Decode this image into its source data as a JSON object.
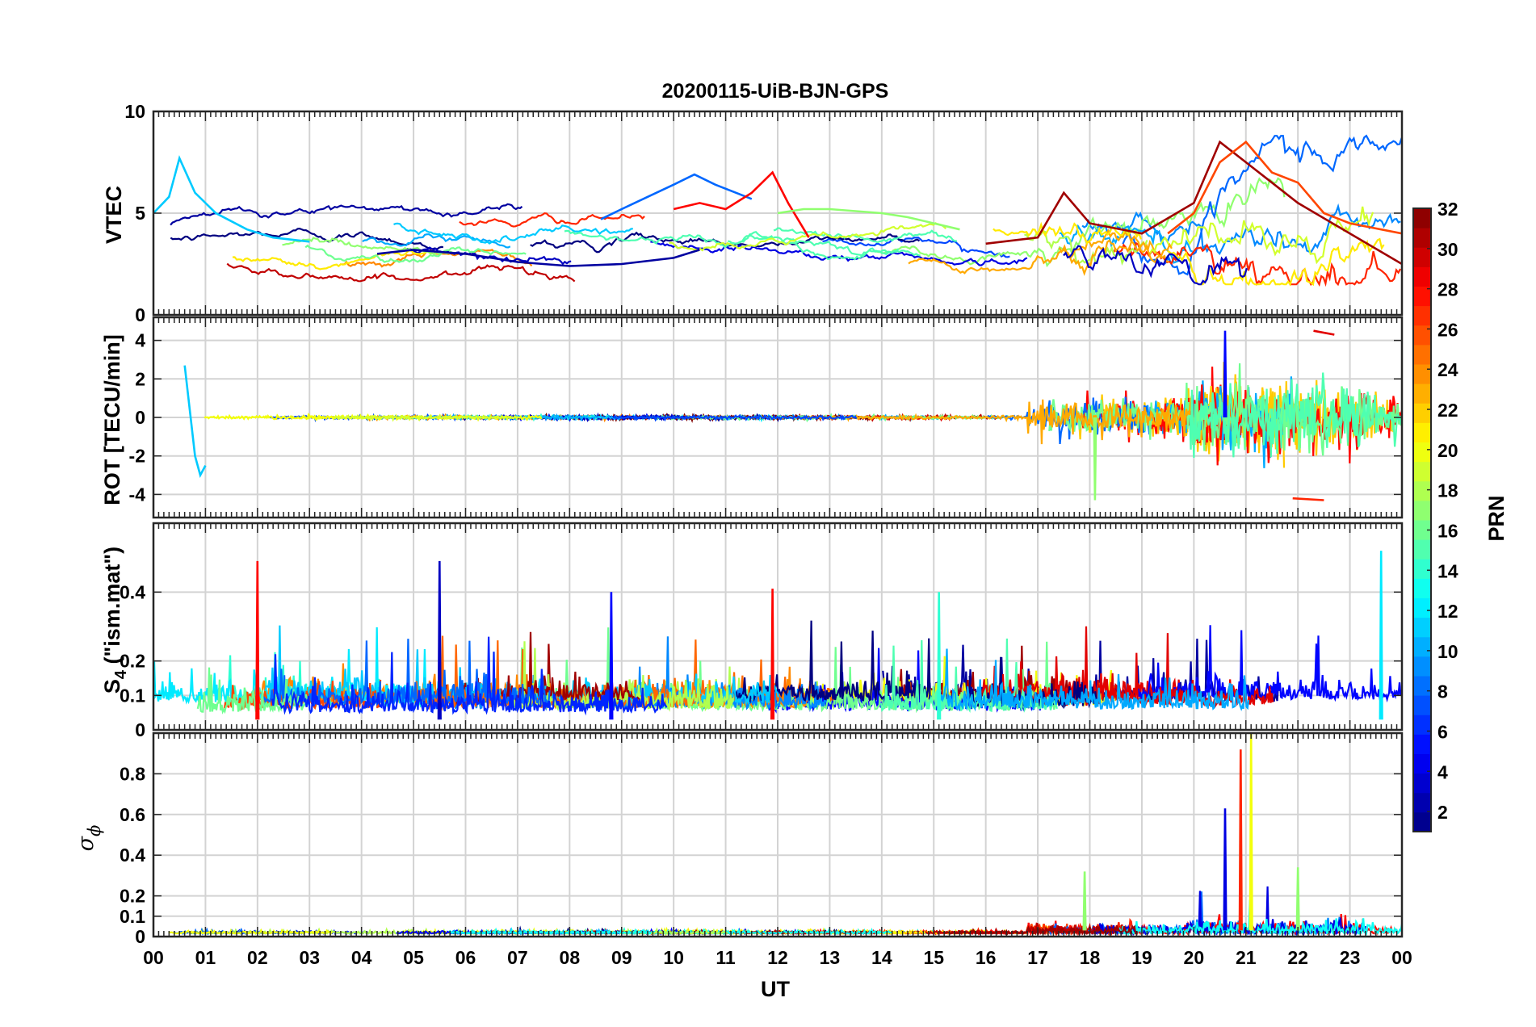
{
  "title": "20200115-UiB-BJN-GPS",
  "xlabel": "UT",
  "colorbar": {
    "label": "PRN",
    "range": [
      1,
      32
    ],
    "ticks": [
      "2",
      "4",
      "6",
      "8",
      "10",
      "12",
      "14",
      "16",
      "18",
      "20",
      "22",
      "24",
      "26",
      "28",
      "30",
      "32"
    ],
    "colormap": "jet"
  },
  "chart_data": [
    {
      "type": "line",
      "panel": "VTEC",
      "ylabel": "VTEC",
      "ylim": [
        0,
        10
      ],
      "yticks": [
        "0",
        "5",
        "10"
      ],
      "xlim": [
        0,
        24
      ],
      "xticks": [
        "00",
        "01",
        "02",
        "03",
        "04",
        "05",
        "06",
        "07",
        "08",
        "09",
        "10",
        "11",
        "12",
        "13",
        "14",
        "15",
        "16",
        "17",
        "18",
        "19",
        "20",
        "21",
        "22",
        "23",
        "00"
      ],
      "grid": true,
      "series": [
        {
          "prn": 11,
          "x": [
            0,
            0.3,
            0.5,
            0.8,
            1.2,
            1.8,
            2.3,
            3.0
          ],
          "values": [
            5.0,
            5.8,
            7.7,
            6.0,
            5.0,
            4.2,
            3.8,
            3.6
          ]
        },
        {
          "prn": 2,
          "x": [
            4.3,
            5.0,
            6.0,
            7.0,
            8.0,
            9.0,
            10.0,
            10.5
          ],
          "values": [
            3.0,
            3.2,
            3.0,
            2.6,
            2.4,
            2.5,
            2.8,
            3.2
          ]
        },
        {
          "prn": 8,
          "x": [
            8.6,
            9.0,
            9.5,
            10.0,
            10.4,
            10.8,
            11.2,
            11.5
          ],
          "values": [
            4.7,
            5.2,
            5.8,
            6.4,
            6.9,
            6.4,
            6.0,
            5.7
          ]
        },
        {
          "prn": 28,
          "x": [
            10.0,
            10.5,
            11.0,
            11.5,
            11.9,
            12.2,
            12.6
          ],
          "values": [
            5.2,
            5.5,
            5.2,
            6.0,
            7.0,
            5.5,
            3.8
          ]
        },
        {
          "prn": 17,
          "x": [
            12.0,
            12.5,
            13.0,
            13.5,
            14.0,
            14.5,
            15.0,
            15.5
          ],
          "values": [
            5.0,
            5.2,
            5.2,
            5.1,
            5.0,
            4.8,
            4.5,
            4.2
          ]
        },
        {
          "prn": 31,
          "x": [
            16.0,
            17.0,
            17.5,
            18.0,
            19.0,
            20.0,
            20.5,
            21.0,
            21.5,
            22.0,
            23.0,
            24.0
          ],
          "values": [
            3.5,
            3.8,
            6.0,
            4.5,
            4.0,
            5.5,
            8.5,
            7.5,
            6.5,
            5.5,
            4.0,
            2.5
          ]
        },
        {
          "prn": 26,
          "x": [
            19.5,
            20.0,
            20.5,
            21.0,
            21.5,
            22.0,
            22.5,
            23.0,
            24.0
          ],
          "values": [
            4.0,
            5.0,
            7.5,
            8.5,
            7.0,
            6.5,
            5.0,
            4.5,
            4.0
          ]
        }
      ]
    },
    {
      "type": "line",
      "panel": "ROT",
      "ylabel": "ROT [TECU/min]",
      "ylim": [
        -5.2,
        5.2
      ],
      "yticks": [
        "-4",
        "-2",
        "0",
        "2",
        "4"
      ],
      "xlim": [
        0,
        24
      ],
      "grid": true,
      "series": [
        {
          "prn": 11,
          "x": [
            0.6,
            0.8,
            0.9,
            1.0
          ],
          "values": [
            2.7,
            -2.0,
            -3.0,
            -2.5
          ]
        },
        {
          "prn": 17,
          "x": [
            18.1
          ],
          "values": [
            -4.3
          ]
        },
        {
          "prn": 5,
          "x": [
            20.6
          ],
          "values": [
            4.5
          ]
        },
        {
          "prn": 27,
          "x": [
            21.9,
            22.5
          ],
          "values": [
            -4.2,
            -4.3
          ]
        },
        {
          "prn": 29,
          "x": [
            22.3,
            22.7
          ],
          "values": [
            4.5,
            4.3
          ]
        }
      ]
    },
    {
      "type": "line",
      "panel": "S4",
      "ylabel": "S4 (\"ism.mat\")",
      "ylim": [
        0,
        0.6
      ],
      "yticks": [
        "0",
        "0.1",
        "0.2",
        "0.4"
      ],
      "xlim": [
        0,
        24
      ],
      "grid": true,
      "series": [
        {
          "prn": 28,
          "x": [
            2.0
          ],
          "values": [
            0.49
          ]
        },
        {
          "prn": 3,
          "x": [
            5.5
          ],
          "values": [
            0.49
          ]
        },
        {
          "prn": 28,
          "x": [
            11.9
          ],
          "values": [
            0.41
          ]
        },
        {
          "prn": 12,
          "x": [
            23.6
          ],
          "values": [
            0.52
          ]
        },
        {
          "prn": 5,
          "x": [
            8.8
          ],
          "values": [
            0.4
          ]
        },
        {
          "prn": 14,
          "x": [
            15.1
          ],
          "values": [
            0.4
          ]
        }
      ]
    },
    {
      "type": "line",
      "panel": "sigma_phi",
      "ylabel": "σ ϕ",
      "ylim": [
        0,
        1
      ],
      "yticks": [
        "0",
        "0.1",
        "0.2",
        "0.4",
        "0.6",
        "0.8"
      ],
      "xlim": [
        0,
        24
      ],
      "grid": true,
      "series": [
        {
          "prn": 4,
          "x": [
            20.6
          ],
          "values": [
            0.63
          ]
        },
        {
          "prn": 27,
          "x": [
            20.9
          ],
          "values": [
            0.92
          ]
        },
        {
          "prn": 20,
          "x": [
            21.1
          ],
          "values": [
            1.0
          ]
        },
        {
          "prn": 17,
          "x": [
            17.9
          ],
          "values": [
            0.32
          ]
        },
        {
          "prn": 17,
          "x": [
            22.0
          ],
          "values": [
            0.34
          ]
        }
      ]
    }
  ]
}
